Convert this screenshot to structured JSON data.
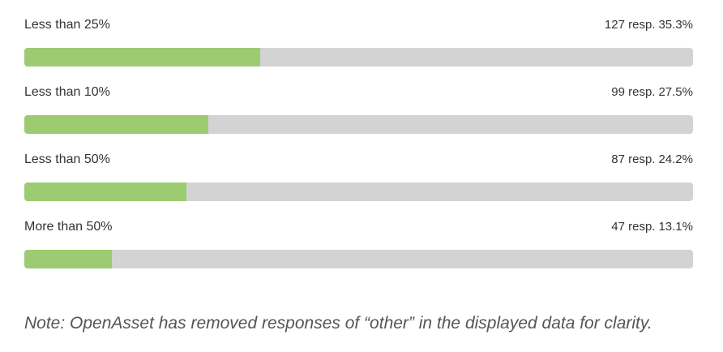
{
  "colors": {
    "fill": "#9ccb72",
    "track": "#d3d3d3"
  },
  "chart_data": {
    "type": "bar",
    "orientation": "horizontal",
    "categories": [
      "Less than 25%",
      "Less than 10%",
      "Less than 50%",
      "More than 50%"
    ],
    "responses": [
      127,
      99,
      87,
      47
    ],
    "responses_text": [
      "127 resp.",
      "99 resp.",
      "87 resp.",
      "47 resp."
    ],
    "values": [
      35.3,
      27.5,
      24.2,
      13.1
    ],
    "values_text": [
      "35.3%",
      "27.5%",
      "24.2%",
      "13.1%"
    ],
    "xlim": [
      0,
      100
    ]
  },
  "note": "Note: OpenAsset has removed responses of “other” in the displayed data for clarity."
}
